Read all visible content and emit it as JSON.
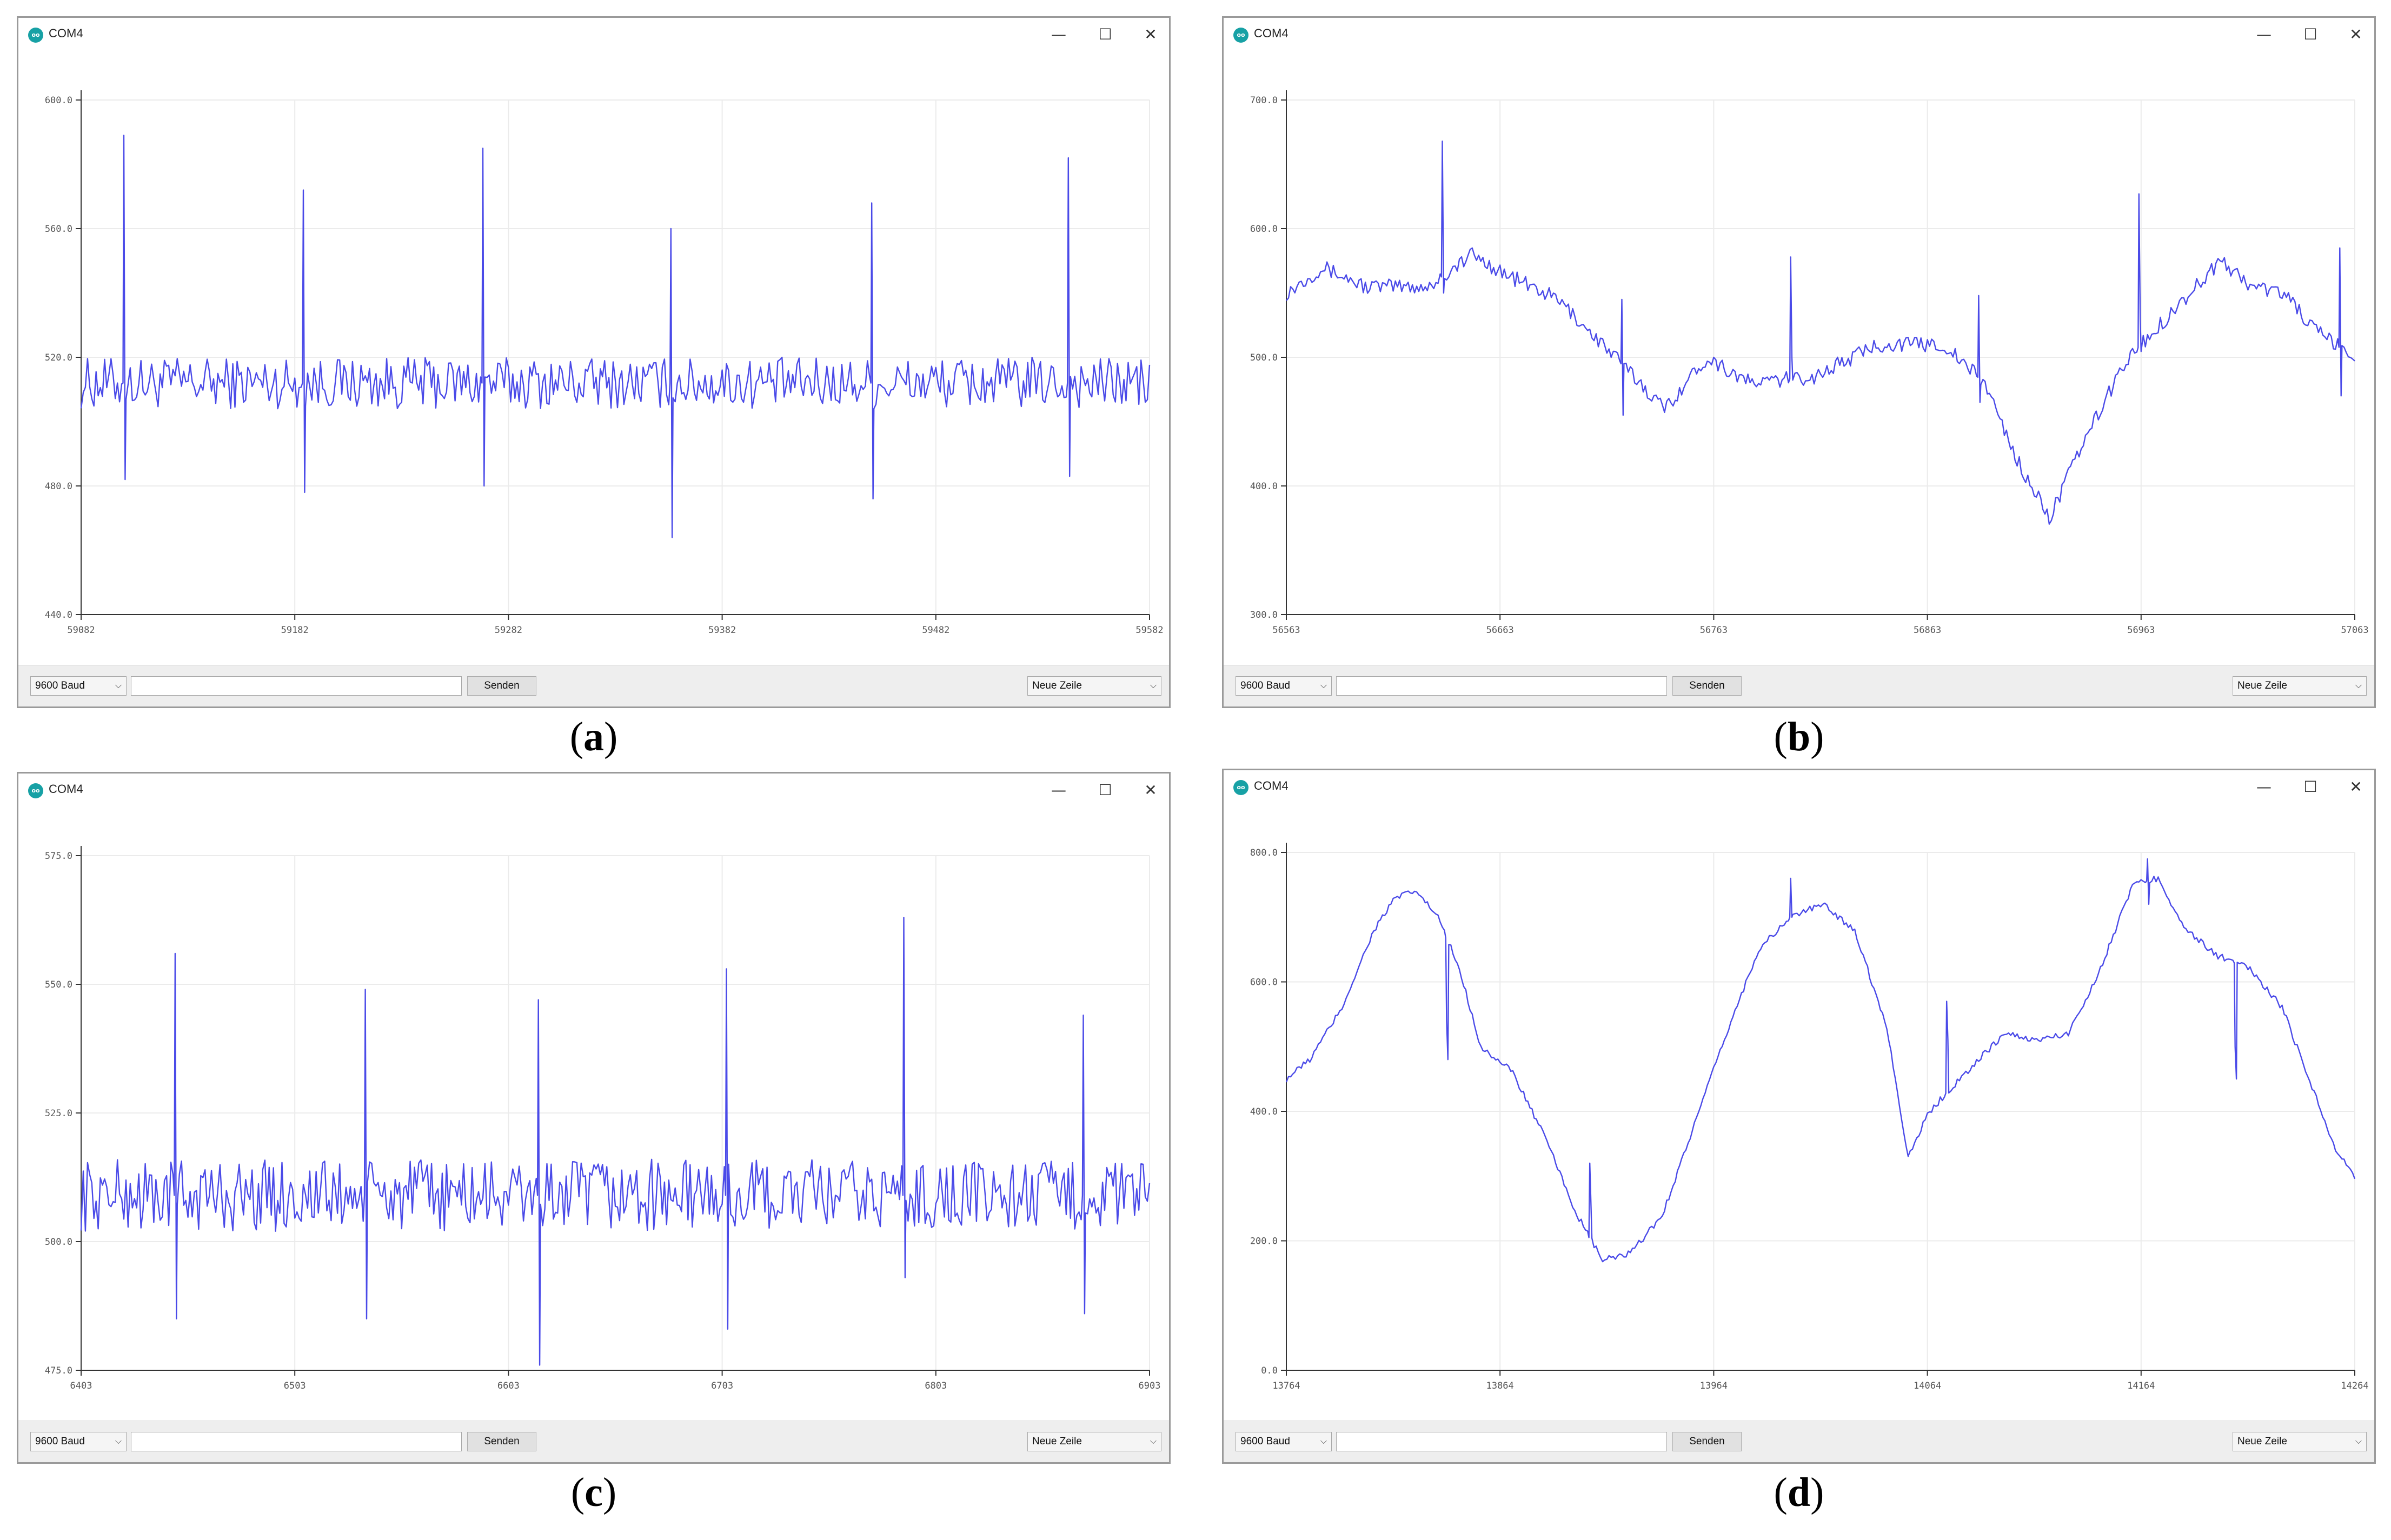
{
  "windows": [
    {
      "id": "a",
      "title": "COM4",
      "icon_text": "oo",
      "caption": "a",
      "baud": "9600 Baud",
      "send_label": "Senden",
      "line_ending": "Neue Zeile",
      "input_value": ""
    },
    {
      "id": "b",
      "title": "COM4",
      "icon_text": "oo",
      "caption": "b",
      "baud": "9600 Baud",
      "send_label": "Senden",
      "line_ending": "Neue Zeile",
      "input_value": ""
    },
    {
      "id": "c",
      "title": "COM4",
      "icon_text": "oo",
      "caption": "c",
      "baud": "9600 Baud",
      "send_label": "Senden",
      "line_ending": "Neue Zeile",
      "input_value": ""
    },
    {
      "id": "d",
      "title": "COM4",
      "icon_text": "oo",
      "caption": "d",
      "baud": "9600 Baud",
      "send_label": "Senden",
      "line_ending": "Neue Zeile",
      "input_value": ""
    }
  ],
  "window_controls": {
    "minimize": "—",
    "maximize": "☐",
    "close": "✕"
  },
  "colors": {
    "series": "#4a4ae8",
    "grid": "#ebebeb",
    "axis": "#333333"
  },
  "chart_data": [
    {
      "type": "line",
      "ylim": [
        440,
        600
      ],
      "xlim": [
        59082,
        59582
      ],
      "yticks": [
        "440.0",
        "480.0",
        "520.0",
        "560.0",
        "600.0"
      ],
      "xticks": [
        "59082",
        "59182",
        "59282",
        "59382",
        "59482",
        "59582"
      ],
      "baseline": 512,
      "noise": 8,
      "spikes": [
        {
          "x": 59102,
          "peak": 589,
          "dip": 482
        },
        {
          "x": 59186,
          "peak": 572,
          "dip": 478
        },
        {
          "x": 59270,
          "peak": 585,
          "dip": 480
        },
        {
          "x": 59358,
          "peak": 560,
          "dip": 464
        },
        {
          "x": 59452,
          "peak": 568,
          "dip": 476
        },
        {
          "x": 59544,
          "peak": 582,
          "dip": 483
        }
      ]
    },
    {
      "type": "line",
      "ylim": [
        300,
        700
      ],
      "xlim": [
        56563,
        57063
      ],
      "yticks": [
        "300.0",
        "400.0",
        "500.0",
        "600.0",
        "700.0"
      ],
      "xticks": [
        "56563",
        "56663",
        "56763",
        "56863",
        "56963",
        "57063"
      ],
      "trend": [
        [
          56563,
          550
        ],
        [
          56580,
          570
        ],
        [
          56600,
          555
        ],
        [
          56630,
          555
        ],
        [
          56650,
          580
        ],
        [
          56665,
          565
        ],
        [
          56690,
          545
        ],
        [
          56720,
          495
        ],
        [
          56740,
          460
        ],
        [
          56760,
          500
        ],
        [
          56780,
          480
        ],
        [
          56810,
          485
        ],
        [
          56840,
          510
        ],
        [
          56870,
          510
        ],
        [
          56890,
          480
        ],
        [
          56905,
          420
        ],
        [
          56920,
          375
        ],
        [
          56935,
          430
        ],
        [
          56955,
          495
        ],
        [
          56980,
          540
        ],
        [
          57000,
          575
        ],
        [
          57015,
          555
        ],
        [
          57030,
          550
        ],
        [
          57045,
          520
        ],
        [
          57063,
          500
        ]
      ],
      "noise": 6,
      "spikes": [
        {
          "x": 56636,
          "peak": 668,
          "dip": 550
        },
        {
          "x": 56720,
          "peak": 545,
          "dip": 455
        },
        {
          "x": 56799,
          "peak": 578,
          "dip": 500
        },
        {
          "x": 56887,
          "peak": 548,
          "dip": 465
        },
        {
          "x": 56962,
          "peak": 627,
          "dip": 530
        },
        {
          "x": 57056,
          "peak": 585,
          "dip": 470
        }
      ]
    },
    {
      "type": "line",
      "ylim": [
        475,
        575
      ],
      "xlim": [
        6403,
        6903
      ],
      "yticks": [
        "475.0",
        "500.0",
        "525.0",
        "550.0",
        "575.0"
      ],
      "xticks": [
        "6403",
        "6503",
        "6603",
        "6703",
        "6803",
        "6903"
      ],
      "baseline": 509,
      "noise": 7,
      "spikes": [
        {
          "x": 6447,
          "peak": 556,
          "dip": 485
        },
        {
          "x": 6536,
          "peak": 549,
          "dip": 485
        },
        {
          "x": 6617,
          "peak": 547,
          "dip": 476
        },
        {
          "x": 6705,
          "peak": 553,
          "dip": 483
        },
        {
          "x": 6788,
          "peak": 563,
          "dip": 493
        },
        {
          "x": 6872,
          "peak": 544,
          "dip": 486
        }
      ]
    },
    {
      "type": "line",
      "ylim": [
        0,
        800
      ],
      "xlim": [
        13764,
        14264
      ],
      "yticks": [
        "0.0",
        "200.0",
        "400.0",
        "600.0",
        "800.0"
      ],
      "xticks": [
        "13764",
        "13864",
        "13964",
        "14064",
        "14164",
        "14264"
      ],
      "trend": [
        [
          13764,
          450
        ],
        [
          13775,
          480
        ],
        [
          13790,
          560
        ],
        [
          13805,
          680
        ],
        [
          13815,
          730
        ],
        [
          13825,
          740
        ],
        [
          13835,
          700
        ],
        [
          13845,
          620
        ],
        [
          13855,
          500
        ],
        [
          13870,
          460
        ],
        [
          13885,
          360
        ],
        [
          13900,
          240
        ],
        [
          13912,
          170
        ],
        [
          13925,
          180
        ],
        [
          13940,
          240
        ],
        [
          13955,
          380
        ],
        [
          13970,
          520
        ],
        [
          13985,
          650
        ],
        [
          14000,
          700
        ],
        [
          14015,
          720
        ],
        [
          14030,
          680
        ],
        [
          14045,
          530
        ],
        [
          14055,
          330
        ],
        [
          14065,
          400
        ],
        [
          14085,
          470
        ],
        [
          14100,
          520
        ],
        [
          14115,
          510
        ],
        [
          14130,
          520
        ],
        [
          14145,
          620
        ],
        [
          14160,
          750
        ],
        [
          14172,
          760
        ],
        [
          14185,
          680
        ],
        [
          14200,
          640
        ],
        [
          14215,
          620
        ],
        [
          14230,
          560
        ],
        [
          14245,
          430
        ],
        [
          14255,
          340
        ],
        [
          14264,
          300
        ]
      ],
      "noise": 5,
      "spikes": [
        {
          "x": 13839,
          "peak": 540,
          "dip": 480
        },
        {
          "x": 13906,
          "peak": 320,
          "dip": 250
        },
        {
          "x": 14000,
          "peak": 760,
          "dip": 700
        },
        {
          "x": 14073,
          "peak": 570,
          "dip": 510
        },
        {
          "x": 14167,
          "peak": 790,
          "dip": 720
        },
        {
          "x": 14208,
          "peak": 500,
          "dip": 450
        }
      ]
    }
  ]
}
